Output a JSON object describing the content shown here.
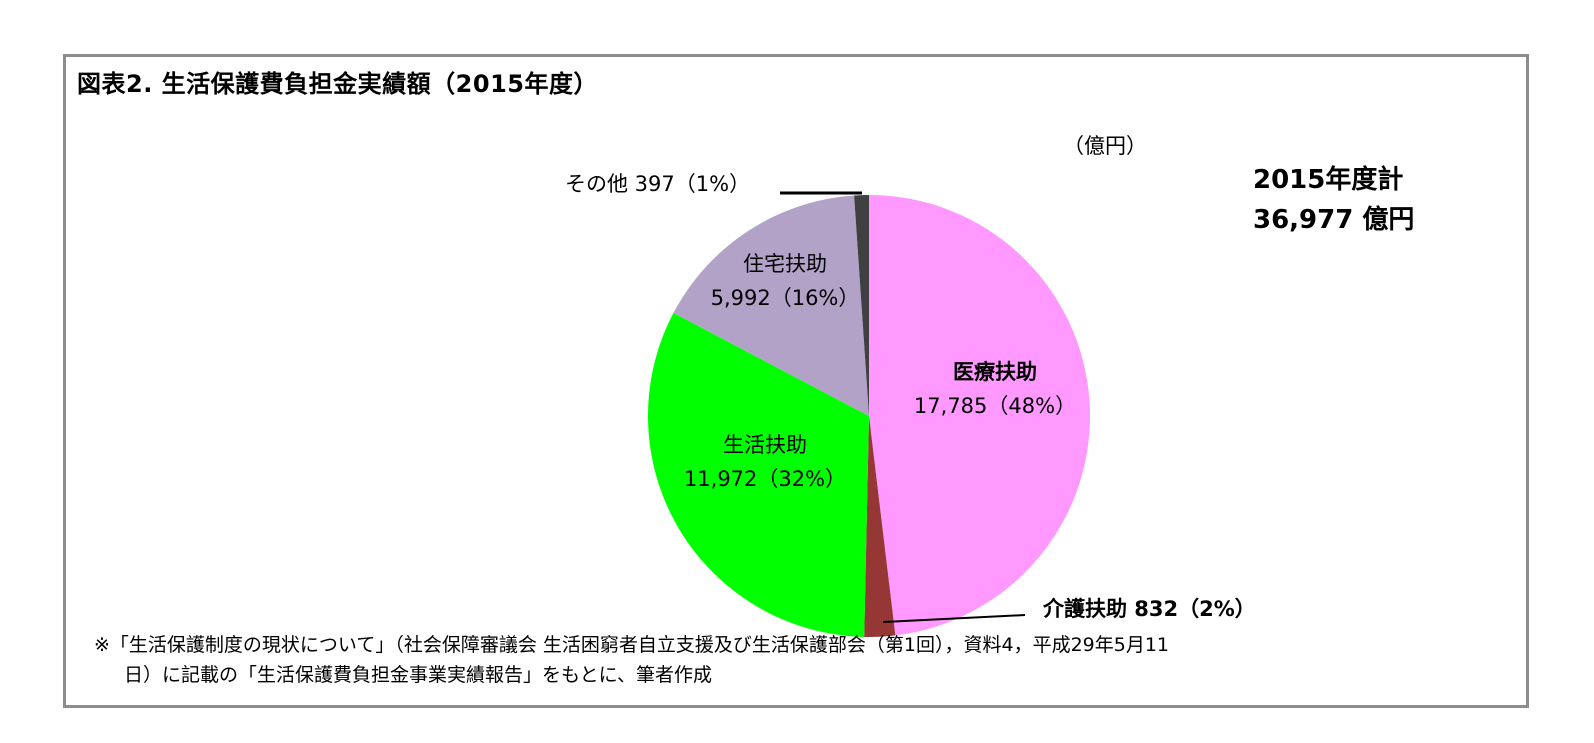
{
  "figure": {
    "title": "図表2. 生活保護費負担金実績額（2015年度）",
    "unit_label": "（億円）",
    "total_label_line1": "2015年度計",
    "total_label_line2": "36,977 億円",
    "footnote_line1": "※「生活保護制度の現状について」（社会保障審議会 生活困窮者自立支援及び生活保護部会（第1回），資料4，平成29年5月11",
    "footnote_line2": "日）に記載の「生活保護費負担金事業実績報告」をもとに、筆者作成"
  },
  "labels": {
    "medical_name": "医療扶助",
    "medical_value": "17,785（48%）",
    "care": "介護扶助 832（2%）",
    "living_name": "生活扶助",
    "living_value": "11,972（32%）",
    "housing_name": "住宅扶助",
    "housing_value": "5,992（16%）",
    "other": "その他 397（1%）"
  },
  "chart_data": {
    "type": "pie",
    "title": "図表2. 生活保護費負担金実績額（2015年度）",
    "unit": "億円",
    "total": 36977,
    "start_angle_deg": 0,
    "direction": "clockwise",
    "categories": [
      "医療扶助",
      "介護扶助",
      "生活扶助",
      "住宅扶助",
      "その他"
    ],
    "values": [
      17785,
      832,
      11972,
      5992,
      397
    ],
    "percentages": [
      48,
      2,
      32,
      16,
      1
    ],
    "colors": [
      "#FF99FF",
      "#953735",
      "#00FF00",
      "#B3A2C7",
      "#404040"
    ],
    "annotations": [
      "2015年度計 36,977 億円",
      "（億円）"
    ],
    "legend": "none (data labels on slices)"
  }
}
